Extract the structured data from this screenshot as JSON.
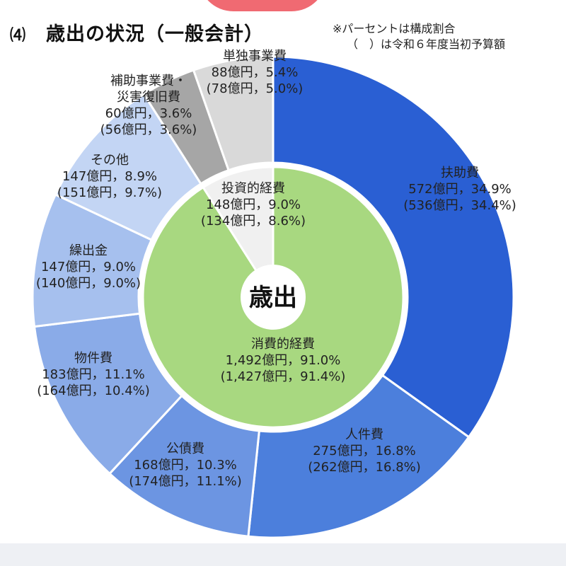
{
  "header": {
    "section_number": "⑷",
    "title": "歳出の状況（一般会計）",
    "note_line1": "※パーセントは構成割合",
    "note_line2": "（　）は令和６年度当初予算額"
  },
  "colors": {
    "accent_top": "#f06a72",
    "center_fill": "#ffffff",
    "outer_stroke": "#ffffff"
  },
  "chart_data": {
    "type": "pie",
    "variant": "nested-donut",
    "center_label": "歳出",
    "outer": [
      {
        "name": "扶助費",
        "value_text": "572億円，34.9%",
        "prev_text": "(536億円，34.4%)",
        "value": 572,
        "percent": 34.9,
        "prev_value": 536,
        "prev_percent": 34.4,
        "color": "#2a5fd3"
      },
      {
        "name": "人件費",
        "value_text": "275億円，16.8%",
        "prev_text": "(262億円，16.8%)",
        "value": 275,
        "percent": 16.8,
        "prev_value": 262,
        "prev_percent": 16.8,
        "color": "#4c7fdc"
      },
      {
        "name": "公債費",
        "value_text": "168億円，10.3%",
        "prev_text": "(174億円，11.1%)",
        "value": 168,
        "percent": 10.3,
        "prev_value": 174,
        "prev_percent": 11.1,
        "color": "#6c95e2"
      },
      {
        "name": "物件費",
        "value_text": "183億円，11.1%",
        "prev_text": "(164億円，10.4%)",
        "value": 183,
        "percent": 11.1,
        "prev_value": 164,
        "prev_percent": 10.4,
        "color": "#8aabe8"
      },
      {
        "name": "繰出金",
        "value_text": "147億円，9.0%",
        "prev_text": "(140億円，9.0%)",
        "value": 147,
        "percent": 9.0,
        "prev_value": 140,
        "prev_percent": 9.0,
        "color": "#a6c0ee"
      },
      {
        "name": "その他",
        "value_text": "147億円，8.9%",
        "prev_text": "(151億円，9.7%)",
        "value": 147,
        "percent": 8.9,
        "prev_value": 151,
        "prev_percent": 9.7,
        "color": "#c3d5f4"
      },
      {
        "name": "補助事業費・\n災害復旧費",
        "value_text": "60億円，3.6%",
        "prev_text": "(56億円，3.6%)",
        "value": 60,
        "percent": 3.6,
        "prev_value": 56,
        "prev_percent": 3.6,
        "color": "#a6a6a6"
      },
      {
        "name": "単独事業費",
        "value_text": "88億円，5.4%",
        "prev_text": "(78億円，5.0%)",
        "value": 88,
        "percent": 5.4,
        "prev_value": 78,
        "prev_percent": 5.0,
        "color": "#d9d9d9"
      }
    ],
    "inner": [
      {
        "name": "消費的経費",
        "value_text": "1,492億円，91.0%",
        "prev_text": "(1,427億円，91.4%)",
        "value": 1492,
        "percent": 91.0,
        "prev_value": 1427,
        "prev_percent": 91.4,
        "color": "#a8d880"
      },
      {
        "name": "投資的経費",
        "value_text": "148億円，9.0%",
        "prev_text": "(134億円，8.6%)",
        "value": 148,
        "percent": 9.0,
        "prev_value": 134,
        "prev_percent": 8.6,
        "color": "#f0f0f0"
      }
    ]
  }
}
